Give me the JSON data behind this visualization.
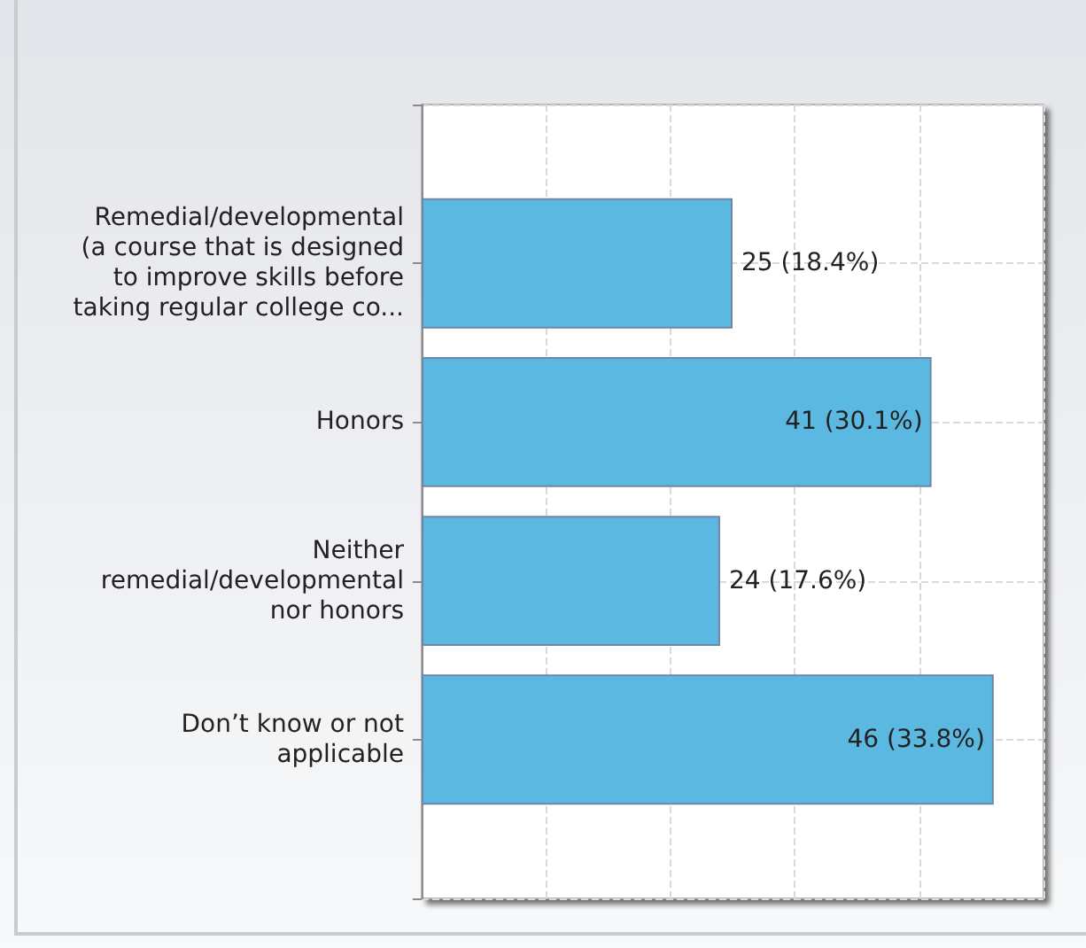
{
  "chart_data": {
    "type": "bar",
    "orientation": "horizontal",
    "categories": [
      "Remedial/developmental (a course that is designed to improve skills before taking regular college co...",
      "Honors",
      "Neither remedial/developmental nor honors",
      "Don’t know or not applicable"
    ],
    "values": [
      25,
      41,
      24,
      46
    ],
    "value_labels": [
      "25 (18.4%)",
      "41 (30.1%)",
      "24 (17.6%)",
      "46 (33.8%)"
    ],
    "color": "#5bb8e0",
    "xlim": [
      0,
      50
    ],
    "xticks": [
      {
        "value": 0,
        "label": null
      },
      {
        "value": 10,
        "label": null
      },
      {
        "value": 20,
        "label": null
      },
      {
        "value": 30,
        "label": null
      },
      {
        "value": 40,
        "label": null
      },
      {
        "value": 50,
        "label": null
      }
    ],
    "grid": true,
    "tick_labels": "y"
  }
}
